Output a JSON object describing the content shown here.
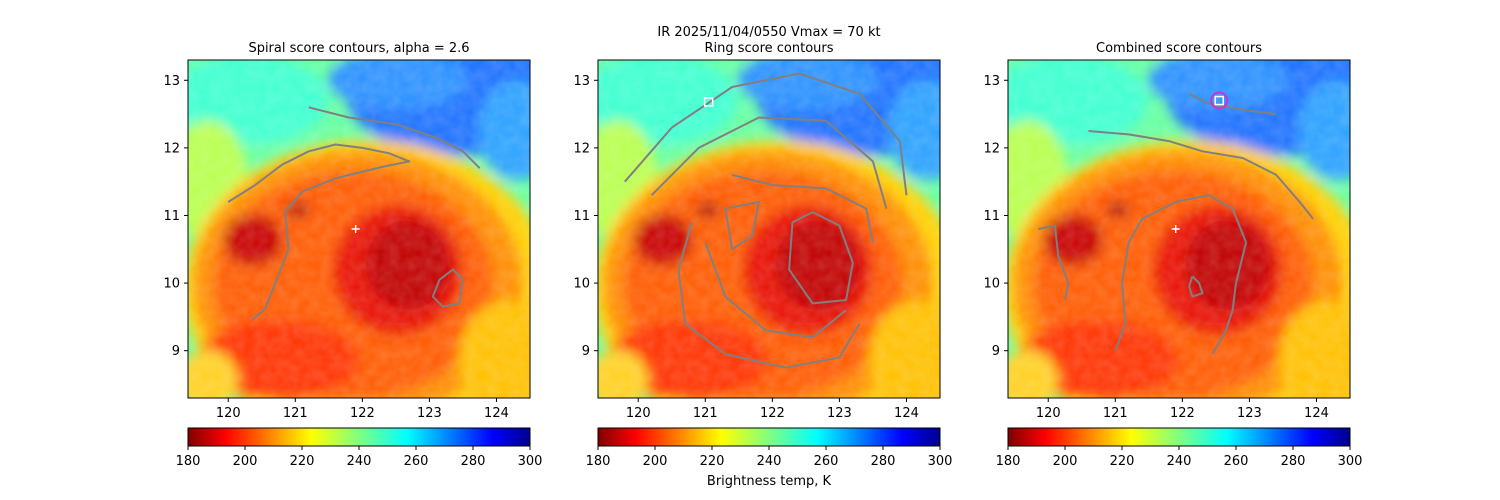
{
  "figure": {
    "suptitle": "IR  2025/11/04/0550    Vmax = 70 kt",
    "colorbar_label": "Brightness temp, K"
  },
  "chart_data": [
    {
      "type": "heatmap",
      "title": "Spiral score contours, alpha =  2.6",
      "xlabel": "",
      "ylabel": "",
      "xlim": [
        119.4,
        124.5
      ],
      "ylim": [
        8.3,
        13.3
      ],
      "xticks": [
        "120",
        "121",
        "122",
        "123",
        "124"
      ],
      "yticks": [
        "9",
        "10",
        "11",
        "12",
        "13"
      ],
      "colorbar": {
        "label": "",
        "range": [
          180,
          300
        ],
        "ticks": [
          "180",
          "200",
          "220",
          "240",
          "260",
          "280",
          "300"
        ],
        "colormap": "jet_r"
      },
      "markers": [
        {
          "kind": "plus",
          "lon": 121.9,
          "lat": 10.8,
          "color": "#ffffff"
        }
      ],
      "contour_color": "#808080",
      "contours": [
        [
          [
            120.0,
            11.2
          ],
          [
            120.4,
            11.45
          ],
          [
            120.8,
            11.75
          ],
          [
            121.2,
            11.95
          ],
          [
            121.6,
            12.05
          ],
          [
            122.0,
            12.0
          ],
          [
            122.4,
            11.92
          ],
          [
            122.7,
            11.8
          ],
          [
            122.3,
            11.72
          ],
          [
            121.6,
            11.55
          ],
          [
            121.1,
            11.35
          ],
          [
            120.85,
            11.05
          ],
          [
            120.9,
            10.5
          ],
          [
            120.7,
            10.0
          ],
          [
            120.55,
            9.62
          ],
          [
            120.35,
            9.45
          ]
        ],
        [
          [
            121.2,
            12.6
          ],
          [
            121.8,
            12.45
          ],
          [
            122.5,
            12.35
          ],
          [
            123.1,
            12.15
          ],
          [
            123.5,
            11.95
          ],
          [
            123.75,
            11.7
          ]
        ],
        [
          [
            123.2,
            9.65
          ],
          [
            123.45,
            9.7
          ],
          [
            123.5,
            10.05
          ],
          [
            123.35,
            10.2
          ],
          [
            123.15,
            10.05
          ],
          [
            123.05,
            9.8
          ],
          [
            123.2,
            9.65
          ]
        ]
      ]
    },
    {
      "type": "heatmap",
      "title": "Ring score contours",
      "xlabel": "",
      "ylabel": "",
      "xlim": [
        119.4,
        124.5
      ],
      "ylim": [
        8.3,
        13.3
      ],
      "xticks": [
        "120",
        "121",
        "122",
        "123",
        "124"
      ],
      "yticks": [
        "9",
        "10",
        "11",
        "12",
        "13"
      ],
      "colorbar": {
        "label": "Brightness temp, K",
        "range": [
          180,
          300
        ],
        "ticks": [
          "180",
          "200",
          "220",
          "240",
          "260",
          "280",
          "300"
        ],
        "colormap": "jet_r"
      },
      "markers": [
        {
          "kind": "square",
          "lon": 121.05,
          "lat": 12.68,
          "color": "#ffffff"
        }
      ],
      "contour_color": "#808080",
      "contours": [
        [
          [
            119.8,
            11.5
          ],
          [
            120.5,
            12.3
          ],
          [
            121.4,
            12.9
          ],
          [
            122.4,
            13.1
          ],
          [
            123.3,
            12.8
          ],
          [
            123.9,
            12.1
          ],
          [
            124.0,
            11.3
          ]
        ],
        [
          [
            120.2,
            11.3
          ],
          [
            120.9,
            12.0
          ],
          [
            121.8,
            12.45
          ],
          [
            122.8,
            12.4
          ],
          [
            123.5,
            11.8
          ],
          [
            123.7,
            11.1
          ]
        ],
        [
          [
            120.8,
            10.9
          ],
          [
            120.6,
            10.2
          ],
          [
            120.7,
            9.4
          ],
          [
            121.3,
            8.95
          ],
          [
            122.2,
            8.75
          ],
          [
            123.0,
            8.9
          ],
          [
            123.3,
            9.4
          ]
        ],
        [
          [
            121.0,
            10.6
          ],
          [
            121.3,
            9.8
          ],
          [
            121.9,
            9.3
          ],
          [
            122.6,
            9.2
          ],
          [
            123.1,
            9.6
          ]
        ],
        [
          [
            122.3,
            10.9
          ],
          [
            122.25,
            10.2
          ],
          [
            122.6,
            9.7
          ],
          [
            123.1,
            9.75
          ],
          [
            123.2,
            10.3
          ],
          [
            123.0,
            10.85
          ],
          [
            122.6,
            11.05
          ],
          [
            122.3,
            10.9
          ]
        ],
        [
          [
            121.4,
            11.6
          ],
          [
            122.0,
            11.45
          ],
          [
            122.8,
            11.4
          ],
          [
            123.4,
            11.1
          ],
          [
            123.5,
            10.6
          ]
        ],
        [
          [
            121.3,
            11.1
          ],
          [
            121.8,
            11.2
          ],
          [
            121.7,
            10.7
          ],
          [
            121.4,
            10.5
          ],
          [
            121.3,
            11.1
          ]
        ]
      ]
    },
    {
      "type": "heatmap",
      "title": "Combined score contours",
      "xlabel": "",
      "ylabel": "",
      "xlim": [
        119.4,
        124.5
      ],
      "ylim": [
        8.3,
        13.3
      ],
      "xticks": [
        "120",
        "121",
        "122",
        "123",
        "124"
      ],
      "yticks": [
        "9",
        "10",
        "11",
        "12",
        "13"
      ],
      "colorbar": {
        "label": "",
        "range": [
          180,
          300
        ],
        "ticks": [
          "180",
          "200",
          "220",
          "240",
          "260",
          "280",
          "300"
        ],
        "colormap": "jet_r"
      },
      "markers": [
        {
          "kind": "plus",
          "lon": 121.9,
          "lat": 10.8,
          "color": "#ffffff"
        },
        {
          "kind": "square",
          "lon": 122.55,
          "lat": 12.7,
          "color": "#ffffff"
        },
        {
          "kind": "circle",
          "lon": 122.55,
          "lat": 12.7,
          "color": "#cc33cc"
        }
      ],
      "contour_color": "#808080",
      "contours": [
        [
          [
            120.6,
            12.25
          ],
          [
            121.2,
            12.2
          ],
          [
            121.8,
            12.1
          ],
          [
            122.3,
            11.95
          ],
          [
            122.9,
            11.85
          ],
          [
            123.4,
            11.6
          ],
          [
            123.75,
            11.2
          ],
          [
            123.95,
            10.95
          ]
        ],
        [
          [
            122.1,
            12.8
          ],
          [
            122.4,
            12.65
          ],
          [
            123.0,
            12.55
          ],
          [
            123.4,
            12.5
          ]
        ],
        [
          [
            119.85,
            10.8
          ],
          [
            120.1,
            10.85
          ],
          [
            120.15,
            10.4
          ],
          [
            120.3,
            10.0
          ],
          [
            120.25,
            9.75
          ]
        ],
        [
          [
            121.0,
            9.0
          ],
          [
            121.15,
            9.4
          ],
          [
            121.1,
            10.0
          ],
          [
            121.2,
            10.6
          ],
          [
            121.4,
            10.95
          ],
          [
            121.9,
            11.2
          ],
          [
            122.4,
            11.3
          ],
          [
            122.75,
            11.1
          ],
          [
            122.95,
            10.6
          ],
          [
            122.8,
            10.0
          ],
          [
            122.75,
            9.6
          ],
          [
            122.65,
            9.3
          ],
          [
            122.45,
            8.95
          ]
        ],
        [
          [
            122.15,
            10.1
          ],
          [
            122.25,
            10.0
          ],
          [
            122.3,
            9.85
          ],
          [
            122.15,
            9.8
          ],
          [
            122.1,
            9.95
          ],
          [
            122.15,
            10.1
          ]
        ]
      ]
    }
  ]
}
